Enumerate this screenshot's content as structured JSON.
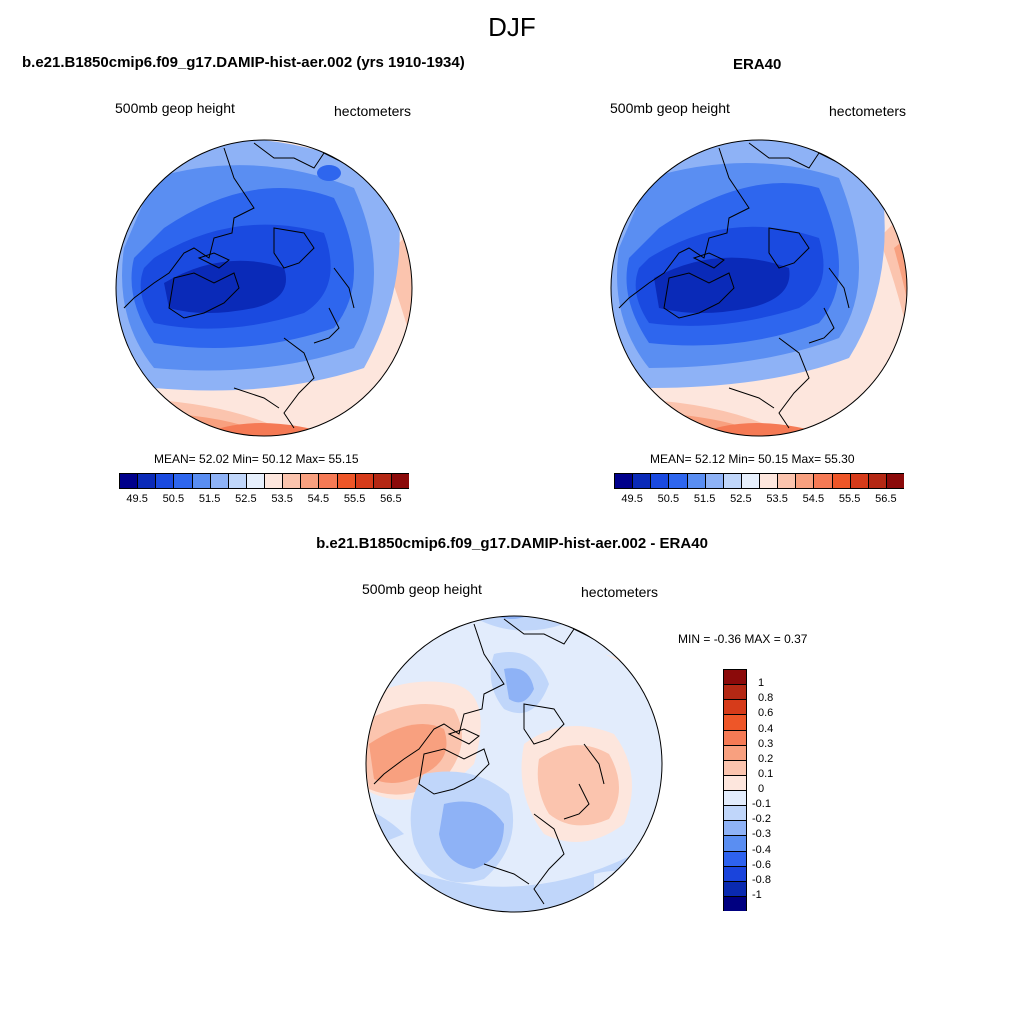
{
  "figure": {
    "season": "DJF",
    "panels": [
      {
        "id": "model",
        "title": "b.e21.B1850cmip6.f09_g17.DAMIP-hist-aer.002 (yrs 1910-1934)",
        "left_label": "500mb geop height",
        "right_label": "hectometers",
        "stats": {
          "mean_label": "MEAN=",
          "mean": "52.02",
          "min_label": "Min=",
          "min": "50.12",
          "max_label": "Max=",
          "max": "55.15"
        }
      },
      {
        "id": "obs",
        "title": "ERA40",
        "left_label": "500mb geop height",
        "right_label": "hectometers",
        "stats": {
          "mean_label": "MEAN=",
          "mean": "52.12",
          "min_label": "Min=",
          "min": "50.15",
          "max_label": "Max=",
          "max": "55.30"
        }
      },
      {
        "id": "diff",
        "title": "b.e21.B1850cmip6.f09_g17.DAMIP-hist-aer.002 - ERA40",
        "left_label": "500mb geop height",
        "right_label": "hectometers",
        "stats": {
          "min_label": "MIN =",
          "min": "-0.36",
          "max_label": "MAX =",
          "max": "0.37"
        }
      }
    ]
  },
  "colorbars": {
    "field": {
      "colors": [
        "#00008b",
        "#0a2ab8",
        "#1a4ae0",
        "#2e66ee",
        "#5a8ef2",
        "#8eb2f6",
        "#c0d6fa",
        "#e6effc",
        "#fde6dd",
        "#fbc4ae",
        "#f8a07f",
        "#f57a55",
        "#ee5628",
        "#d63b1a",
        "#b42814",
        "#8b0a0a"
      ],
      "ticks": [
        "49.5",
        "50.5",
        "51.5",
        "52.5",
        "53.5",
        "54.5",
        "55.5",
        "56.5"
      ]
    },
    "diff": {
      "colors": [
        "#000080",
        "#0a2ab0",
        "#1a44dc",
        "#2e62ee",
        "#5a8ef2",
        "#8eb2f6",
        "#c0d6fa",
        "#e2ecfc",
        "#fde6dd",
        "#fbc4ae",
        "#f8a07f",
        "#f57a55",
        "#ee5628",
        "#d63b1a",
        "#b42814",
        "#8b0a0a"
      ],
      "ticks": [
        "1",
        "0.8",
        "0.6",
        "0.4",
        "0.3",
        "0.2",
        "0.1",
        "0",
        "-0.1",
        "-0.2",
        "-0.3",
        "-0.4",
        "-0.6",
        "-0.8",
        "-1"
      ]
    }
  }
}
